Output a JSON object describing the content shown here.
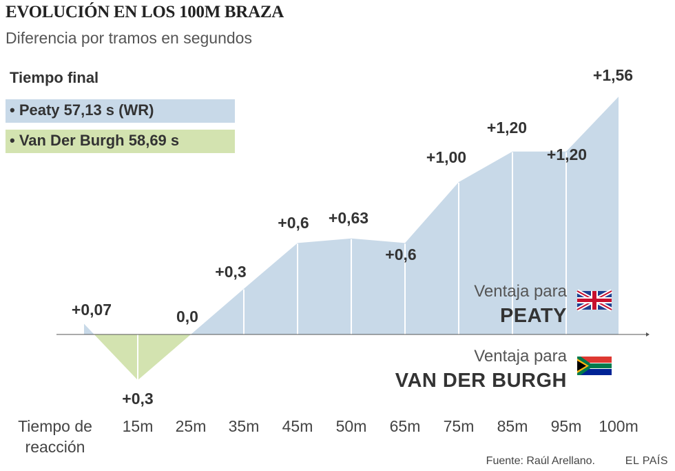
{
  "header": {
    "title": "EVOLUCIÓN EN LOS 100M BRAZA",
    "subtitle": "Diferencia por tramos en segundos"
  },
  "legend": {
    "title": "Tiempo final",
    "items": [
      {
        "label": "• Peaty 57,13 s (WR)",
        "color": "#c8d9e8"
      },
      {
        "label": "• Van Der Burgh 58,69 s",
        "color": "#d3e3b0"
      }
    ]
  },
  "advantage": {
    "peaty_prefix": "Ventaja para",
    "peaty_name": "PEATY",
    "vdb_prefix": "Ventaja para",
    "vdb_name": "VAN DER BURGH",
    "peaty_flag": "uk-flag-icon",
    "vdb_flag": "south-africa-flag-icon"
  },
  "footer": {
    "source": "Fuente: Raúl Arellano.",
    "brand": "EL PAÍS"
  },
  "chart_data": {
    "type": "area",
    "title": "EVOLUCIÓN EN LOS 100M BRAZA",
    "subtitle": "Diferencia por tramos en segundos",
    "categories": [
      "Tiempo de reacción",
      "15m",
      "25m",
      "35m",
      "45m",
      "50m",
      "65m",
      "75m",
      "85m",
      "95m",
      "100m"
    ],
    "values": [
      0.07,
      -0.3,
      0.0,
      0.3,
      0.6,
      0.63,
      0.6,
      1.0,
      1.2,
      1.2,
      1.56
    ],
    "labels": [
      "+0,07",
      "+0,3",
      "0,0",
      "+0,3",
      "+0,6",
      "+0,63",
      "+0,6",
      "+1,00",
      "+1,20",
      "+1,20",
      "+1,56"
    ],
    "tick_labels": [
      [
        "Tiempo de",
        "reacción"
      ],
      [
        "15m"
      ],
      [
        "25m"
      ],
      [
        "35m"
      ],
      [
        "45m"
      ],
      [
        "50m"
      ],
      [
        "65m"
      ],
      [
        "75m"
      ],
      [
        "85m"
      ],
      [
        "95m"
      ],
      [
        "100m"
      ]
    ],
    "positive_color": "#c8d9e8",
    "negative_color": "#d3e3b0",
    "ylim": [
      -0.3,
      1.56
    ],
    "grid": false
  }
}
